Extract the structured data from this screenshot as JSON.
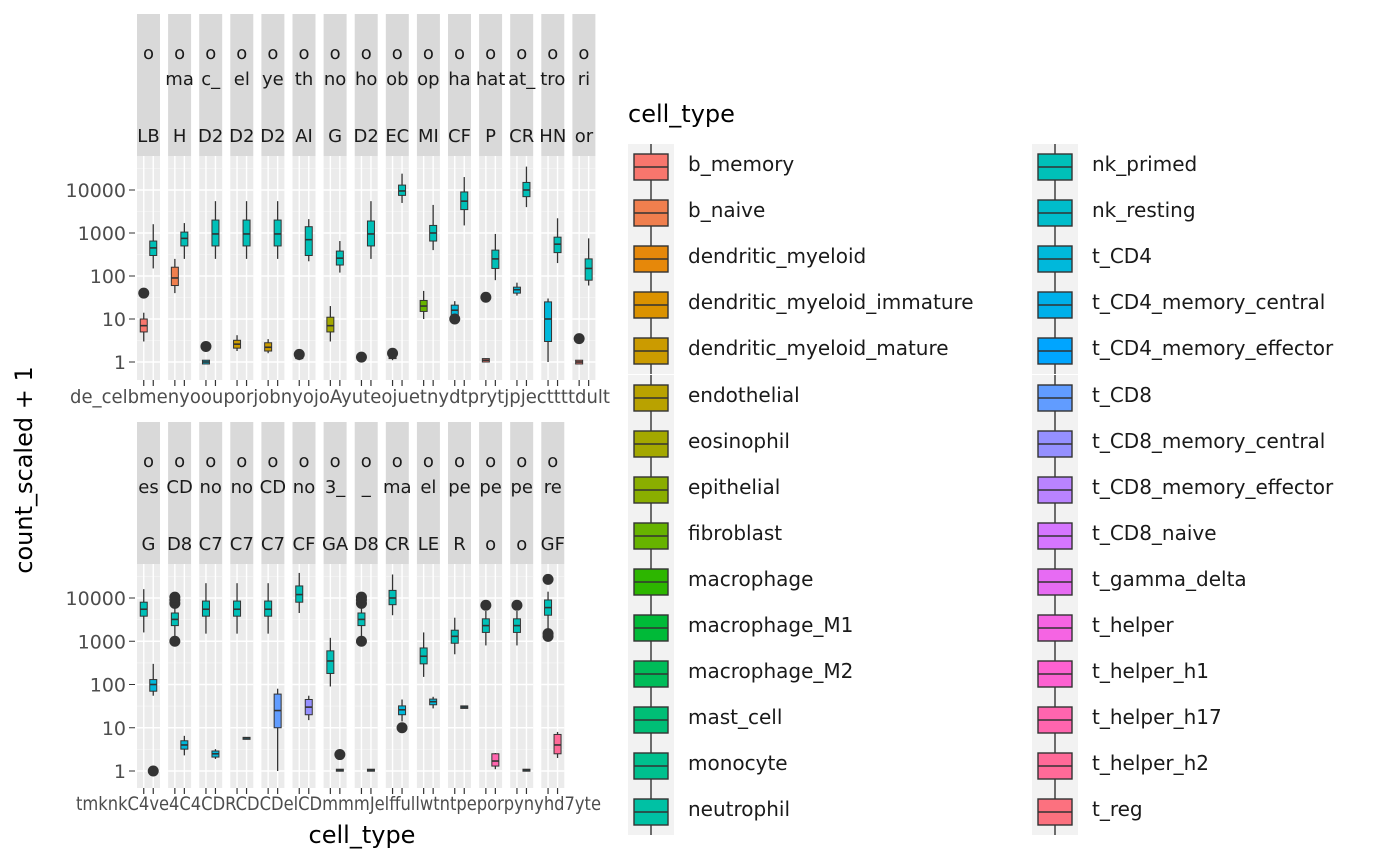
{
  "chart_data": {
    "type": "box",
    "y_axis_label": "count_scaled + 1",
    "x_axis_label": "cell_type",
    "y_scale": "log10",
    "y_ticks": [
      1,
      10,
      100,
      1000,
      10000
    ],
    "y_tick_labels": [
      "1",
      "10",
      "100",
      "1000",
      "10000"
    ],
    "ylim": [
      0.6,
      60000
    ],
    "legend_title": "cell_type",
    "legend_position": "right",
    "cell_types": [
      {
        "name": "b_memory",
        "color": "#F8766D"
      },
      {
        "name": "b_naive",
        "color": "#F07F4E"
      },
      {
        "name": "dendritic_myeloid",
        "color": "#E6880A"
      },
      {
        "name": "dendritic_myeloid_immature",
        "color": "#DB9200"
      },
      {
        "name": "dendritic_myeloid_mature",
        "color": "#CB9B00"
      },
      {
        "name": "endothelial",
        "color": "#B9A200"
      },
      {
        "name": "eosinophil",
        "color": "#A4A800"
      },
      {
        "name": "epithelial",
        "color": "#8AAE00"
      },
      {
        "name": "fibroblast",
        "color": "#67B300"
      },
      {
        "name": "macrophage",
        "color": "#2DB600"
      },
      {
        "name": "macrophage_M1",
        "color": "#00BA38"
      },
      {
        "name": "macrophage_M2",
        "color": "#00BC59"
      },
      {
        "name": "mast_cell",
        "color": "#00BE76"
      },
      {
        "name": "monocyte",
        "color": "#00C08E"
      },
      {
        "name": "neutrophil",
        "color": "#00C1A4"
      },
      {
        "name": "nk_primed",
        "color": "#00C0B8"
      },
      {
        "name": "nk_resting",
        "color": "#00BDCB"
      },
      {
        "name": "t_CD4",
        "color": "#00B8DB"
      },
      {
        "name": "t_CD4_memory_central",
        "color": "#00B0EA"
      },
      {
        "name": "t_CD4_memory_effector",
        "color": "#00A5FF"
      },
      {
        "name": "t_CD8",
        "color": "#619CFF"
      },
      {
        "name": "t_CD8_memory_central",
        "color": "#9590FF"
      },
      {
        "name": "t_CD8_memory_effector",
        "color": "#B983FF"
      },
      {
        "name": "t_CD8_naive",
        "color": "#D576FE"
      },
      {
        "name": "t_gamma_delta",
        "color": "#E76BF3"
      },
      {
        "name": "t_helper",
        "color": "#F564E3"
      },
      {
        "name": "t_helper_h1",
        "color": "#FD61D1"
      },
      {
        "name": "t_helper_h17",
        "color": "#FF65AE"
      },
      {
        "name": "t_helper_h2",
        "color": "#FF6A98"
      },
      {
        "name": "t_reg",
        "color": "#FC717F"
      }
    ],
    "panels": [
      {
        "row": 1,
        "strip_top": "o",
        "strip_mid": "",
        "strip_bot": "LB",
        "boxes": [
          {
            "type": "b_memory",
            "q1": 5,
            "median": 7,
            "q3": 10,
            "lo": 3,
            "hi": 14,
            "out": [
              40
            ]
          },
          {
            "type": "nk_primed",
            "q1": 300,
            "median": 450,
            "q3": 650,
            "lo": 150,
            "hi": 1600,
            "out": []
          }
        ]
      },
      {
        "row": 1,
        "strip_top": "o",
        "strip_mid": "ma",
        "strip_bot": "H",
        "boxes": [
          {
            "type": "b_naive",
            "q1": 60,
            "median": 90,
            "q3": 160,
            "lo": 40,
            "hi": 250,
            "out": []
          },
          {
            "type": "nk_primed",
            "q1": 500,
            "median": 750,
            "q3": 1050,
            "lo": 250,
            "hi": 1700,
            "out": []
          }
        ]
      },
      {
        "row": 1,
        "strip_top": "o",
        "strip_mid": "c_",
        "strip_bot": "D2",
        "boxes": [
          {
            "type": "t_CD4",
            "q1": 0.9,
            "median": 1,
            "q3": 1.1,
            "lo": 0.9,
            "hi": 1.1,
            "out": [
              2.3
            ]
          },
          {
            "type": "nk_primed",
            "q1": 500,
            "median": 950,
            "q3": 2000,
            "lo": 250,
            "hi": 5500,
            "out": []
          }
        ]
      },
      {
        "row": 1,
        "strip_top": "o",
        "strip_mid": "el",
        "strip_bot": "D2",
        "boxes": [
          {
            "type": "dendritic_myeloid_mature",
            "q1": 2.1,
            "median": 2.6,
            "q3": 3.2,
            "lo": 1.8,
            "hi": 4.2,
            "out": []
          },
          {
            "type": "nk_primed",
            "q1": 500,
            "median": 950,
            "q3": 2000,
            "lo": 250,
            "hi": 5500,
            "out": []
          }
        ]
      },
      {
        "row": 1,
        "strip_top": "o",
        "strip_mid": "ye",
        "strip_bot": "D2",
        "boxes": [
          {
            "type": "dendritic_myeloid_mature",
            "q1": 1.8,
            "median": 2.2,
            "q3": 2.8,
            "lo": 1.6,
            "hi": 3.4,
            "out": []
          },
          {
            "type": "nk_primed",
            "q1": 500,
            "median": 950,
            "q3": 2000,
            "lo": 250,
            "hi": 5500,
            "out": []
          }
        ]
      },
      {
        "row": 1,
        "strip_top": "o",
        "strip_mid": "th",
        "strip_bot": "AI",
        "boxes": [
          {
            "type": "b_memory",
            "q1": 1.2,
            "median": 1.3,
            "q3": 1.5,
            "lo": 1.1,
            "hi": 1.6,
            "out": [
              1.5
            ]
          },
          {
            "type": "nk_primed",
            "q1": 300,
            "median": 700,
            "q3": 1400,
            "lo": 220,
            "hi": 2100,
            "out": []
          }
        ]
      },
      {
        "row": 1,
        "strip_top": "o",
        "strip_mid": "no",
        "strip_bot": "G",
        "boxes": [
          {
            "type": "eosinophil",
            "q1": 5,
            "median": 7,
            "q3": 11,
            "lo": 3,
            "hi": 20,
            "out": []
          },
          {
            "type": "nk_primed",
            "q1": 180,
            "median": 260,
            "q3": 380,
            "lo": 120,
            "hi": 650,
            "out": []
          }
        ]
      },
      {
        "row": 1,
        "strip_top": "o",
        "strip_mid": "ho",
        "strip_bot": "D2",
        "boxes": [
          {
            "type": "b_memory",
            "q1": 1.1,
            "median": 1.2,
            "q3": 1.3,
            "lo": 1.1,
            "hi": 1.4,
            "out": [
              1.3
            ]
          },
          {
            "type": "nk_primed",
            "q1": 500,
            "median": 950,
            "q3": 1900,
            "lo": 250,
            "hi": 5500,
            "out": []
          }
        ]
      },
      {
        "row": 1,
        "strip_top": "o",
        "strip_mid": "ob",
        "strip_bot": "EC",
        "boxes": [
          {
            "type": "b_memory",
            "q1": 1.2,
            "median": 1.3,
            "q3": 1.5,
            "lo": 1.1,
            "hi": 1.6,
            "out": [
              1.6
            ]
          },
          {
            "type": "nk_primed",
            "q1": 7500,
            "median": 9500,
            "q3": 13000,
            "lo": 5000,
            "hi": 24000,
            "out": []
          }
        ]
      },
      {
        "row": 1,
        "strip_top": "o",
        "strip_mid": "op",
        "strip_bot": "MI",
        "boxes": [
          {
            "type": "fibroblast",
            "q1": 15,
            "median": 20,
            "q3": 27,
            "lo": 10,
            "hi": 45,
            "out": []
          },
          {
            "type": "nk_primed",
            "q1": 650,
            "median": 1000,
            "q3": 1500,
            "lo": 400,
            "hi": 4500,
            "out": []
          }
        ]
      },
      {
        "row": 1,
        "strip_top": "o",
        "strip_mid": "ha",
        "strip_bot": "CF",
        "boxes": [
          {
            "type": "t_CD4",
            "q1": 12,
            "median": 16,
            "q3": 21,
            "lo": 11,
            "hi": 26,
            "out": [
              10
            ]
          },
          {
            "type": "nk_primed",
            "q1": 3500,
            "median": 5500,
            "q3": 9000,
            "lo": 1500,
            "hi": 20000,
            "out": []
          }
        ]
      },
      {
        "row": 1,
        "strip_top": "o",
        "strip_mid": "hat",
        "strip_bot": "P",
        "boxes": [
          {
            "type": "b_memory",
            "q1": 1.0,
            "median": 1.1,
            "q3": 1.2,
            "lo": 1.0,
            "hi": 1.2,
            "out": [
              32
            ]
          },
          {
            "type": "nk_primed",
            "q1": 150,
            "median": 250,
            "q3": 400,
            "lo": 80,
            "hi": 950,
            "out": []
          }
        ]
      },
      {
        "row": 1,
        "strip_top": "o",
        "strip_mid": "at_",
        "strip_bot": "CR",
        "boxes": [
          {
            "type": "t_CD4",
            "q1": 40,
            "median": 48,
            "q3": 55,
            "lo": 35,
            "hi": 70,
            "out": []
          },
          {
            "type": "nk_primed",
            "q1": 7000,
            "median": 10000,
            "q3": 15000,
            "lo": 4000,
            "hi": 35000,
            "out": []
          }
        ]
      },
      {
        "row": 1,
        "strip_top": "o",
        "strip_mid": "tro",
        "strip_bot": "HN",
        "boxes": [
          {
            "type": "t_CD4",
            "q1": 3,
            "median": 10,
            "q3": 25,
            "lo": 1,
            "hi": 30,
            "out": []
          },
          {
            "type": "nk_primed",
            "q1": 350,
            "median": 550,
            "q3": 800,
            "lo": 200,
            "hi": 2200,
            "out": []
          }
        ]
      },
      {
        "row": 1,
        "strip_top": "o",
        "strip_mid": "ri",
        "strip_bot": "or",
        "boxes": [
          {
            "type": "b_memory",
            "q1": 0.9,
            "median": 1,
            "q3": 1.1,
            "lo": 0.9,
            "hi": 1.1,
            "out": [
              3.5
            ]
          },
          {
            "type": "nk_primed",
            "q1": 80,
            "median": 150,
            "q3": 250,
            "lo": 60,
            "hi": 750,
            "out": []
          }
        ]
      },
      {
        "row": 2,
        "strip_top": "o",
        "strip_mid": "es",
        "strip_bot": "G",
        "boxes": [
          {
            "type": "nk_primed",
            "q1": 3800,
            "median": 5500,
            "q3": 8000,
            "lo": 1600,
            "hi": 16000,
            "out": []
          },
          {
            "type": "t_CD4",
            "q1": 70,
            "median": 100,
            "q3": 130,
            "lo": 55,
            "hi": 300,
            "out": [
              1
            ]
          }
        ]
      },
      {
        "row": 2,
        "strip_top": "o",
        "strip_mid": "CD",
        "strip_bot": "D8",
        "boxes": [
          {
            "type": "nk_primed",
            "q1": 2300,
            "median": 3200,
            "q3": 4500,
            "lo": 1200,
            "hi": 6500,
            "out": [
              1000,
              7500,
              9000,
              10500
            ]
          },
          {
            "type": "t_CD4",
            "q1": 3.2,
            "median": 4,
            "q3": 5,
            "lo": 2.3,
            "hi": 6.5,
            "out": []
          }
        ]
      },
      {
        "row": 2,
        "strip_top": "o",
        "strip_mid": "no",
        "strip_bot": "C7",
        "boxes": [
          {
            "type": "nk_primed",
            "q1": 3800,
            "median": 5500,
            "q3": 8500,
            "lo": 1500,
            "hi": 22000,
            "out": []
          },
          {
            "type": "t_CD4",
            "q1": 2.1,
            "median": 2.5,
            "q3": 2.9,
            "lo": 1.9,
            "hi": 3.2,
            "out": []
          }
        ]
      },
      {
        "row": 2,
        "strip_top": "o",
        "strip_mid": "no",
        "strip_bot": "C7",
        "boxes": [
          {
            "type": "nk_primed",
            "q1": 3800,
            "median": 5500,
            "q3": 8500,
            "lo": 1500,
            "hi": 22000,
            "out": []
          },
          {
            "type": "t_CD4",
            "q1": 5.6,
            "median": 5.8,
            "q3": 6.0,
            "lo": 5.6,
            "hi": 6.0,
            "out": []
          }
        ]
      },
      {
        "row": 2,
        "strip_top": "o",
        "strip_mid": "CD",
        "strip_bot": "C7",
        "boxes": [
          {
            "type": "nk_primed",
            "q1": 3800,
            "median": 5500,
            "q3": 8500,
            "lo": 1500,
            "hi": 22000,
            "out": []
          },
          {
            "type": "t_CD8",
            "q1": 10,
            "median": 25,
            "q3": 60,
            "lo": 1,
            "hi": 80,
            "out": []
          }
        ]
      },
      {
        "row": 2,
        "strip_top": "o",
        "strip_mid": "no",
        "strip_bot": "CF",
        "boxes": [
          {
            "type": "nk_primed",
            "q1": 8000,
            "median": 12000,
            "q3": 19000,
            "lo": 4500,
            "hi": 38000,
            "out": []
          },
          {
            "type": "t_CD8_memory_central",
            "q1": 20,
            "median": 30,
            "q3": 45,
            "lo": 15,
            "hi": 55,
            "out": []
          }
        ]
      },
      {
        "row": 2,
        "strip_top": "o",
        "strip_mid": "3_",
        "strip_bot": "GA",
        "boxes": [
          {
            "type": "nk_primed",
            "q1": 180,
            "median": 350,
            "q3": 600,
            "lo": 90,
            "hi": 1200,
            "out": []
          },
          {
            "type": "t_CD4",
            "q1": 1.0,
            "median": 1.05,
            "q3": 1.1,
            "lo": 1.0,
            "hi": 1.1,
            "out": [
              2.4
            ]
          }
        ]
      },
      {
        "row": 2,
        "strip_top": "o",
        "strip_mid": "_",
        "strip_bot": "D8",
        "boxes": [
          {
            "type": "nk_primed",
            "q1": 2300,
            "median": 3200,
            "q3": 4500,
            "lo": 1200,
            "hi": 6500,
            "out": [
              1000,
              7500,
              9000,
              10500
            ]
          },
          {
            "type": "t_CD4",
            "q1": 1.0,
            "median": 1.05,
            "q3": 1.1,
            "lo": 1.0,
            "hi": 1.1,
            "out": []
          }
        ]
      },
      {
        "row": 2,
        "strip_top": "o",
        "strip_mid": "ma",
        "strip_bot": "CR",
        "boxes": [
          {
            "type": "nk_primed",
            "q1": 7000,
            "median": 10000,
            "q3": 15000,
            "lo": 4000,
            "hi": 35000,
            "out": []
          },
          {
            "type": "t_CD4",
            "q1": 20,
            "median": 26,
            "q3": 32,
            "lo": 14,
            "hi": 45,
            "out": [
              10
            ]
          }
        ]
      },
      {
        "row": 2,
        "strip_top": "o",
        "strip_mid": "el",
        "strip_bot": "LE",
        "boxes": [
          {
            "type": "nk_primed",
            "q1": 300,
            "median": 450,
            "q3": 700,
            "lo": 150,
            "hi": 1600,
            "out": []
          },
          {
            "type": "t_CD4",
            "q1": 34,
            "median": 40,
            "q3": 46,
            "lo": 28,
            "hi": 52,
            "out": []
          }
        ]
      },
      {
        "row": 2,
        "strip_top": "o",
        "strip_mid": "pe",
        "strip_bot": "R",
        "boxes": [
          {
            "type": "nk_primed",
            "q1": 900,
            "median": 1300,
            "q3": 1800,
            "lo": 500,
            "hi": 3500,
            "out": []
          },
          {
            "type": "t_CD4",
            "q1": 28,
            "median": 30,
            "q3": 32,
            "lo": 28,
            "hi": 32,
            "out": []
          }
        ]
      },
      {
        "row": 2,
        "strip_top": "o",
        "strip_mid": "pe",
        "strip_bot": "o",
        "boxes": [
          {
            "type": "nk_primed",
            "q1": 1600,
            "median": 2300,
            "q3": 3300,
            "lo": 800,
            "hi": 5000,
            "out": [
              6800
            ]
          },
          {
            "type": "t_helper_h17",
            "q1": 1.3,
            "median": 1.7,
            "q3": 2.5,
            "lo": 1.1,
            "hi": 2.6,
            "out": []
          }
        ]
      },
      {
        "row": 2,
        "strip_top": "o",
        "strip_mid": "pe",
        "strip_bot": "o",
        "boxes": [
          {
            "type": "nk_primed",
            "q1": 1600,
            "median": 2300,
            "q3": 3300,
            "lo": 800,
            "hi": 5000,
            "out": [
              6800
            ]
          },
          {
            "type": "t_CD4",
            "q1": 1.0,
            "median": 1.05,
            "q3": 1.1,
            "lo": 1.0,
            "hi": 1.1,
            "out": []
          }
        ]
      },
      {
        "row": 2,
        "strip_top": "o",
        "strip_mid": "re",
        "strip_bot": "GF",
        "boxes": [
          {
            "type": "nk_primed",
            "q1": 4000,
            "median": 6000,
            "q3": 9000,
            "lo": 1800,
            "hi": 14000,
            "out": [
              1300,
              1500,
              27000
            ]
          },
          {
            "type": "t_helper_h2",
            "q1": 2.5,
            "median": 4,
            "q3": 7,
            "lo": 2,
            "hi": 8,
            "out": []
          }
        ]
      }
    ],
    "x_tick_overlap_row1": "de_celbmenyoouporjobnyojoAyuteojuetnydtprytjpjecttttdult",
    "x_tick_overlap_row2": "tmknkC4ve4C4CDRCDCDelCDmmmJelffullwtntpeporpynyhd7yte"
  }
}
